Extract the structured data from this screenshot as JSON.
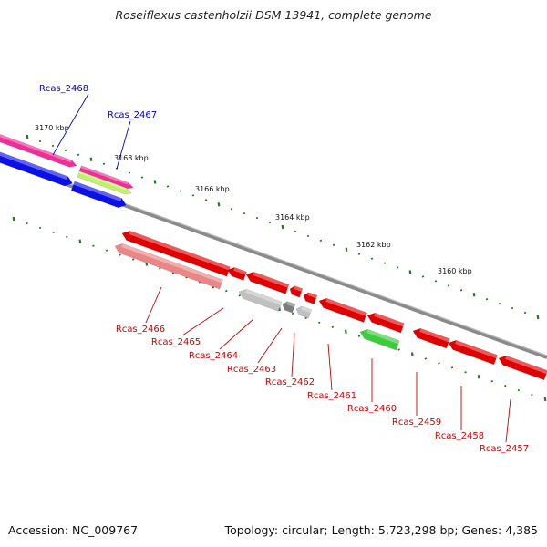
{
  "title": "Roseiflexus castenholzii DSM 13941, complete genome",
  "footer": {
    "accession": "Accession: NC_009767",
    "topology": "Topology: circular; Length: 5,723,298 bp; Genes: 4,385"
  },
  "colors": {
    "backbone": "#8a8a8a",
    "tick_green": "#1e7a1e",
    "label_red": "#cc0000",
    "label_blue": "#0000cc",
    "red": "#e00000",
    "red_light": "#e98686",
    "pink": "#ee2f98",
    "lime": "#bff26a",
    "blue": "#0b10e6",
    "gray": "#c0c0c0",
    "gray_dark": "#7d7d7d",
    "green": "#3ccc3c"
  },
  "scale_labels": [
    "3170 kbp",
    "3168 kbp",
    "3166 kbp",
    "3164 kbp",
    "3162 kbp",
    "3160 kbp"
  ],
  "genes": [
    {
      "id": "Rcas_2468",
      "label": "Rcas_2468",
      "color": "pink",
      "side": "top"
    },
    {
      "id": "Rcas_2467",
      "label": "Rcas_2467",
      "color": "lime",
      "side": "top"
    },
    {
      "id": "Rcas_2468b",
      "label": "",
      "color": "blue",
      "side": "top"
    },
    {
      "id": "Rcas_2467b",
      "label": "",
      "color": "blue",
      "side": "top"
    },
    {
      "id": "Rcas_2466",
      "label": "Rcas_2466",
      "color": "red_light",
      "side": "bottom"
    },
    {
      "id": "Rcas_2465",
      "label": "Rcas_2465",
      "color": "red",
      "side": "bottom"
    },
    {
      "id": "Rcas_2464",
      "label": "Rcas_2464",
      "color": "gray",
      "side": "bottom"
    },
    {
      "id": "Rcas_2463",
      "label": "Rcas_2463",
      "color": "gray_dark",
      "side": "bottom"
    },
    {
      "id": "Rcas_2462",
      "label": "Rcas_2462",
      "color": "gray",
      "side": "bottom"
    },
    {
      "id": "Rcas_2461",
      "label": "Rcas_2461",
      "color": "red",
      "side": "bottom"
    },
    {
      "id": "Rcas_2460",
      "label": "Rcas_2460",
      "color": "green",
      "side": "bottom"
    },
    {
      "id": "Rcas_2459",
      "label": "Rcas_2459",
      "color": "red",
      "side": "bottom"
    },
    {
      "id": "Rcas_2458",
      "label": "Rcas_2458",
      "color": "red",
      "side": "bottom"
    },
    {
      "id": "Rcas_2457",
      "label": "Rcas_2457",
      "color": "red",
      "side": "bottom"
    }
  ]
}
